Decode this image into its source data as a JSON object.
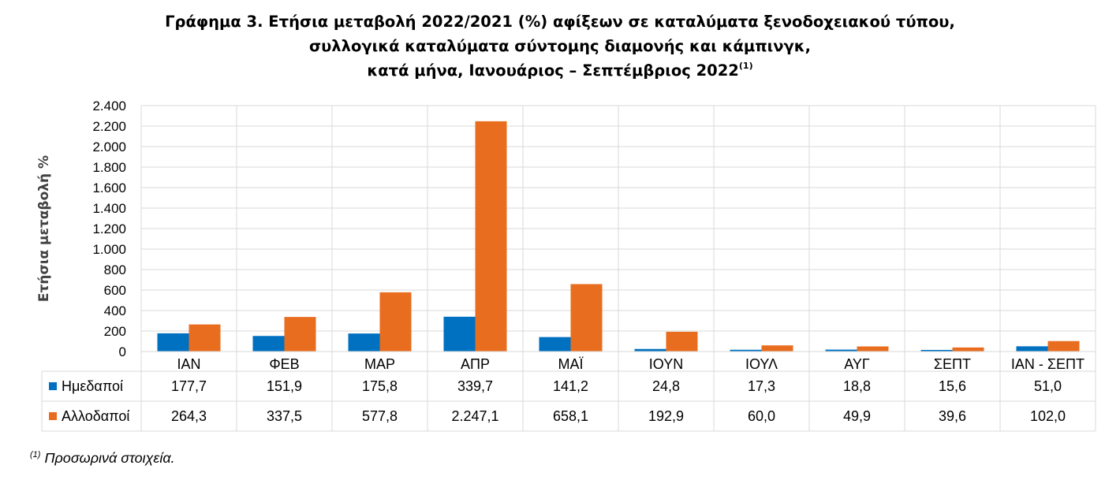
{
  "title": {
    "line1": "Γράφημα 3. Ετήσια μεταβολή 2022/2021 (%) αφίξεων σε καταλύματα ξενοδοχειακού τύπου,",
    "line2": "συλλογικά καταλύματα σύντομης διαμονής και κάμπινγκ,",
    "line3": "κατά μήνα, Ιανουάριος – Σεπτέμβριος 2022",
    "note_ref": "(1)"
  },
  "footnote": {
    "ref": "(1)",
    "text": " Προσωρινά στοιχεία."
  },
  "chart_data": {
    "type": "bar",
    "ylabel": "Ετήσια μεταβολή %",
    "ylim": [
      0,
      2400
    ],
    "yticks": [
      0,
      200,
      400,
      600,
      800,
      1000,
      1200,
      1400,
      1600,
      1800,
      2000,
      2200,
      2400
    ],
    "ytick_labels": [
      "0",
      "200",
      "400",
      "600",
      "800",
      "1.000",
      "1.200",
      "1.400",
      "1.600",
      "1.800",
      "2.000",
      "2.200",
      "2.400"
    ],
    "grid": true,
    "legend_position": "data-table",
    "categories": [
      "ΙΑΝ",
      "ΦΕΒ",
      "ΜΑΡ",
      "ΑΠΡ",
      "ΜΑΪ",
      "ΙΟΥΝ",
      "ΙΟΥΛ",
      "ΑΥΓ",
      "ΣΕΠΤ",
      "ΙΑΝ - ΣΕΠΤ"
    ],
    "series": [
      {
        "name": "Ημεδαποί",
        "color": "#0070c0",
        "values": [
          177.7,
          151.9,
          175.8,
          339.7,
          141.2,
          24.8,
          17.3,
          18.8,
          15.6,
          51.0
        ],
        "labels": [
          "177,7",
          "151,9",
          "175,8",
          "339,7",
          "141,2",
          "24,8",
          "17,3",
          "18,8",
          "15,6",
          "51,0"
        ]
      },
      {
        "name": "Αλλοδαποί",
        "color": "#e96d1f",
        "values": [
          264.3,
          337.5,
          577.8,
          2247.1,
          658.1,
          192.9,
          60.0,
          49.9,
          39.6,
          102.0
        ],
        "labels": [
          "264,3",
          "337,5",
          "577,8",
          "2.247,1",
          "658,1",
          "192,9",
          "60,0",
          "49,9",
          "39,6",
          "102,0"
        ]
      }
    ]
  }
}
